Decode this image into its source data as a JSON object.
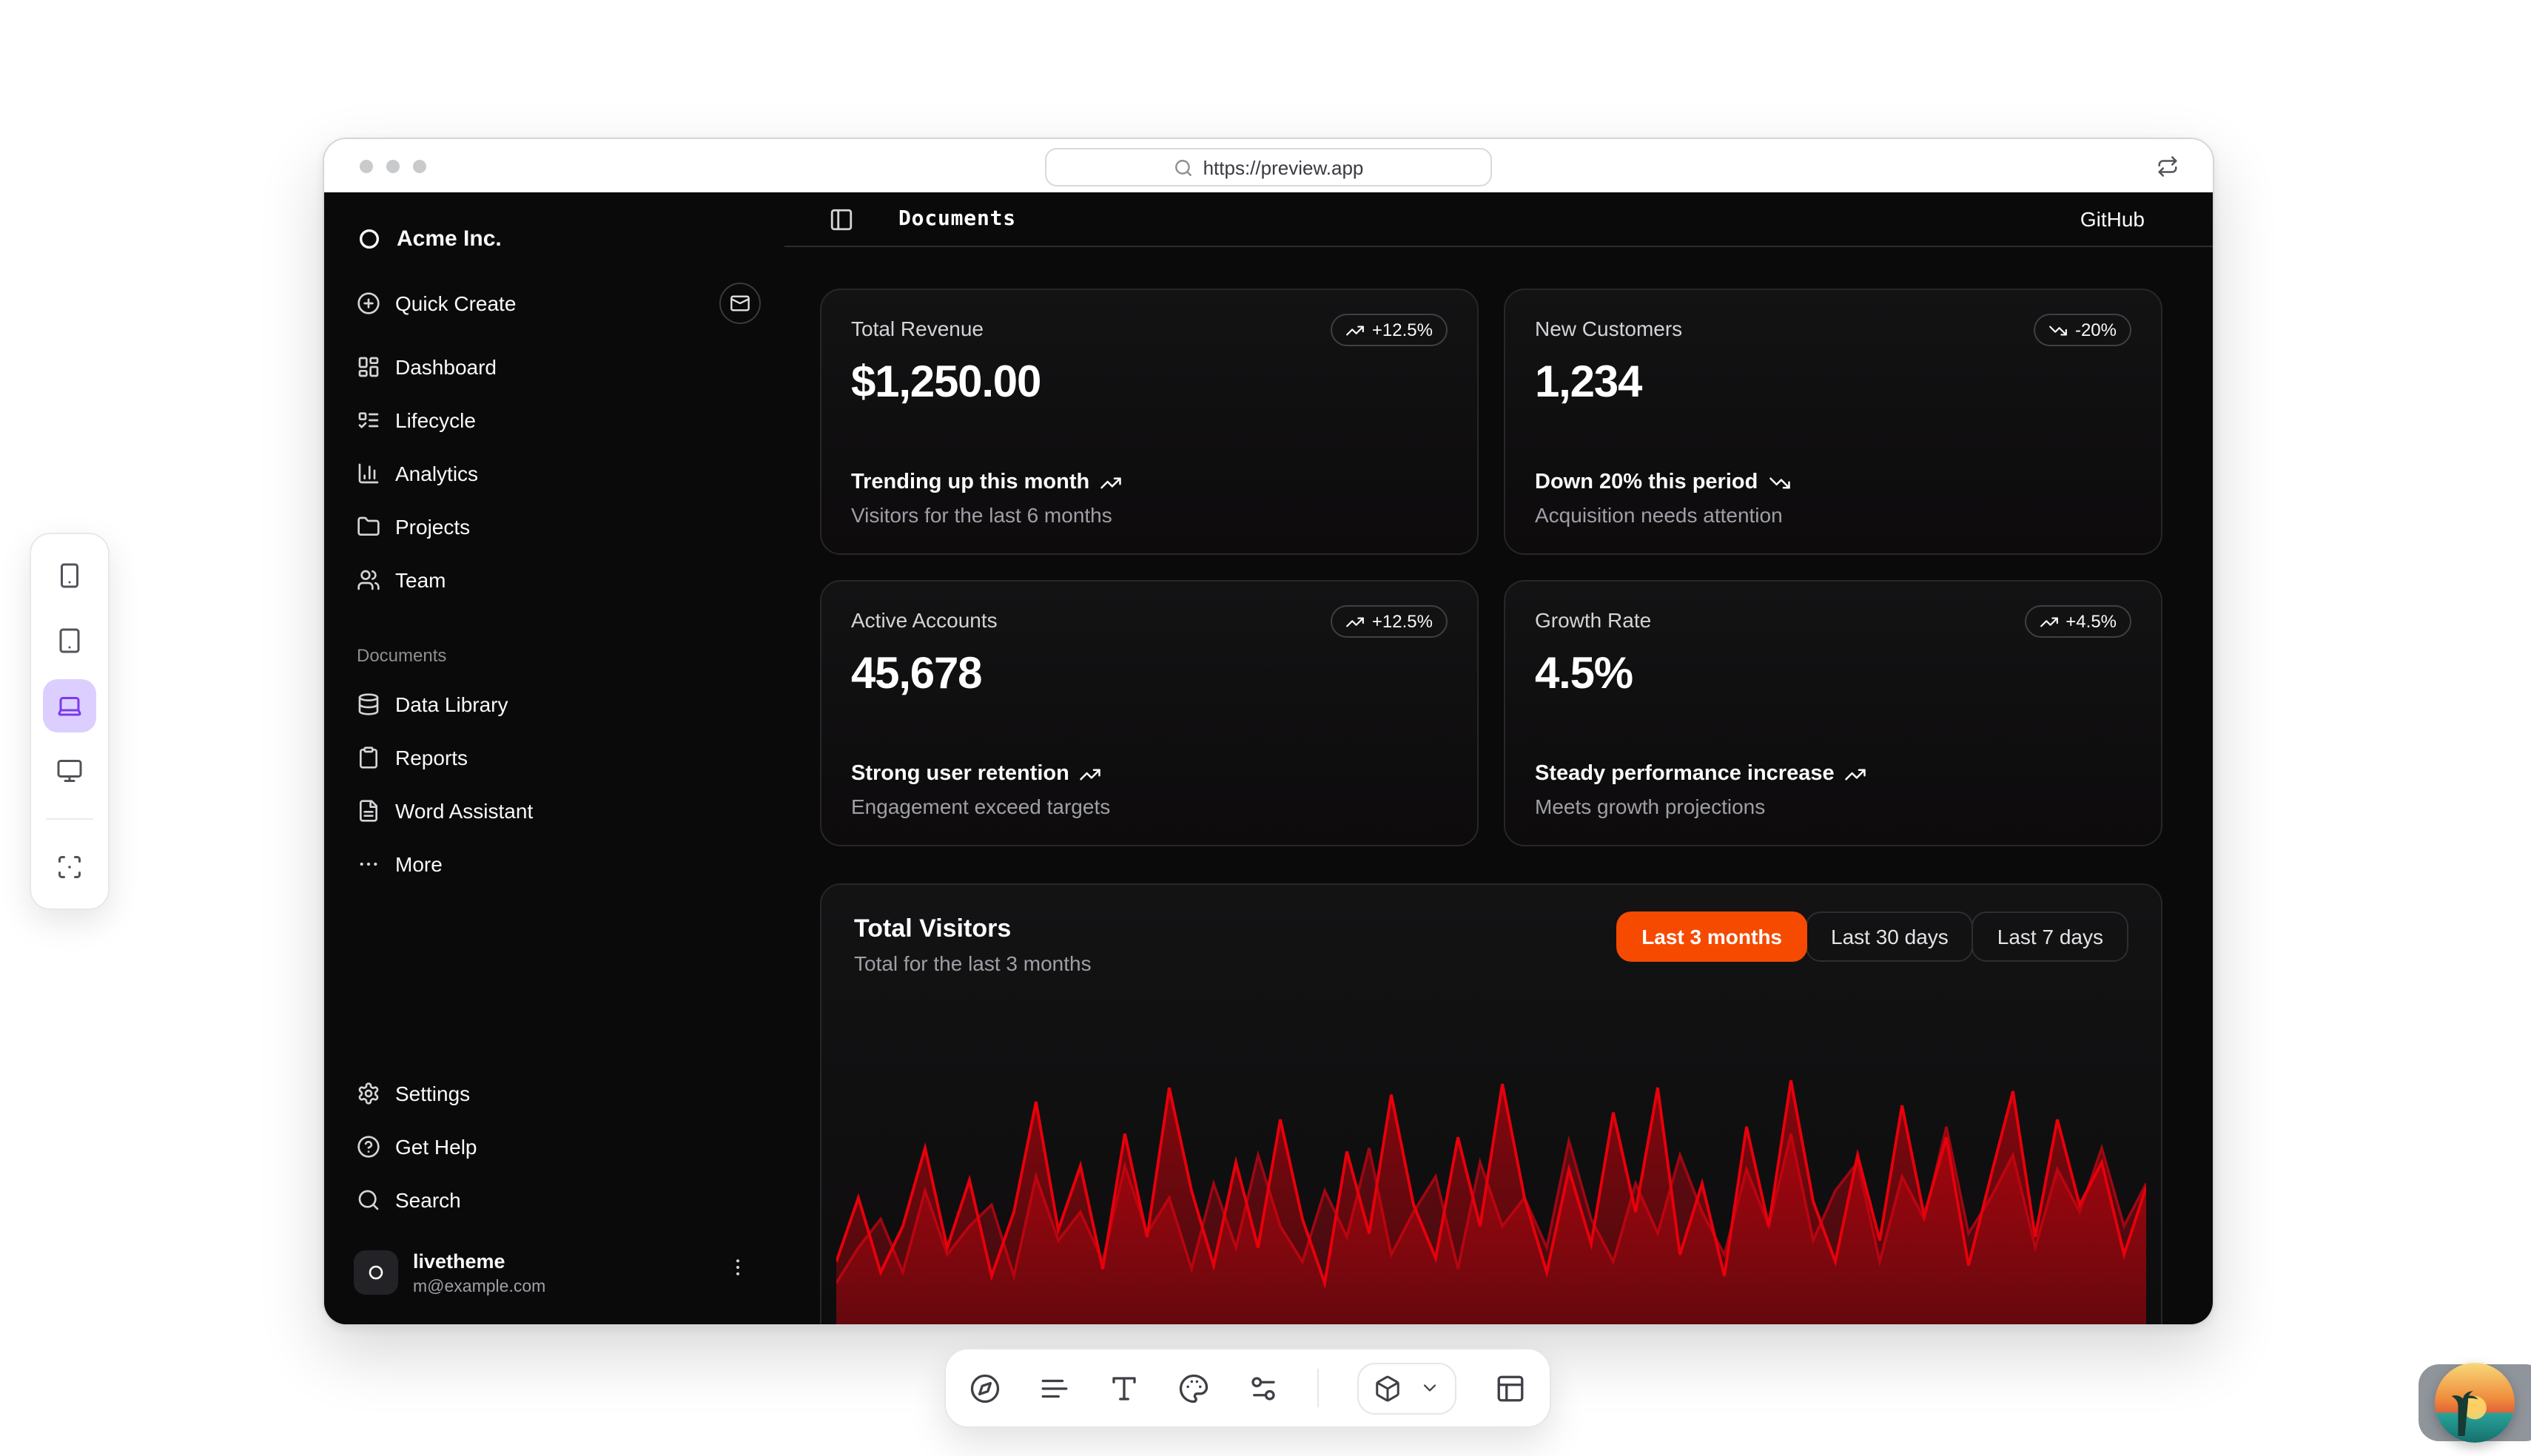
{
  "browser": {
    "url": "https://preview.app"
  },
  "header": {
    "title": "Documents",
    "github": "GitHub"
  },
  "sidebar": {
    "org": "Acme Inc.",
    "quick_create": "Quick Create",
    "nav": [
      {
        "label": "Dashboard",
        "icon": "layout-dashboard"
      },
      {
        "label": "Lifecycle",
        "icon": "list-todo"
      },
      {
        "label": "Analytics",
        "icon": "chart-column"
      },
      {
        "label": "Projects",
        "icon": "folder"
      },
      {
        "label": "Team",
        "icon": "users"
      }
    ],
    "section_label": "Documents",
    "documents": [
      {
        "label": "Data Library",
        "icon": "database"
      },
      {
        "label": "Reports",
        "icon": "clipboard"
      },
      {
        "label": "Word Assistant",
        "icon": "file-text"
      },
      {
        "label": "More",
        "icon": "ellipsis"
      }
    ],
    "footer": [
      {
        "label": "Settings",
        "icon": "gear"
      },
      {
        "label": "Get Help",
        "icon": "help-circle"
      },
      {
        "label": "Search",
        "icon": "search"
      }
    ],
    "user": {
      "name": "livetheme",
      "email": "m@example.com"
    }
  },
  "stats": [
    {
      "title": "Total Revenue",
      "badge": "+12.5%",
      "trend": "up",
      "value": "$1,250.00",
      "line1": "Trending up this month",
      "line2": "Visitors for the last 6 months"
    },
    {
      "title": "New Customers",
      "badge": "-20%",
      "trend": "down",
      "value": "1,234",
      "line1": "Down 20% this period",
      "line2": "Acquisition needs attention"
    },
    {
      "title": "Active Accounts",
      "badge": "+12.5%",
      "trend": "up",
      "value": "45,678",
      "line1": "Strong user retention",
      "line2": "Engagement exceed targets"
    },
    {
      "title": "Growth Rate",
      "badge": "+4.5%",
      "trend": "up",
      "value": "4.5%",
      "line1": "Steady performance increase",
      "line2": "Meets growth projections"
    }
  ],
  "visitors": {
    "ranges": [
      "Last 3 months",
      "Last 30 days",
      "Last 7 days"
    ],
    "active_range": "Last 3 months"
  },
  "chart_data": {
    "type": "area",
    "title": "Total Visitors",
    "subtitle": "Total for the last 3 months",
    "grid": "off",
    "legend": "none",
    "x_axis_labels_visible": false,
    "ylim": [
      0,
      100
    ],
    "series": [
      {
        "name": "primary",
        "color": "#e7000b",
        "values": [
          48,
          66,
          45,
          58,
          80,
          52,
          71,
          44,
          62,
          93,
          57,
          75,
          46,
          84,
          55,
          97,
          68,
          47,
          76,
          52,
          88,
          60,
          42,
          79,
          56,
          95,
          64,
          49,
          83,
          58,
          98,
          66,
          45,
          74,
          53,
          90,
          62,
          97,
          50,
          70,
          44,
          86,
          58,
          99,
          65,
          48,
          78,
          54,
          92,
          61,
          83,
          47,
          72,
          96,
          55,
          88,
          64,
          76,
          50,
          69
        ]
      },
      {
        "name": "secondary",
        "color": "#9f0712",
        "values": [
          42,
          52,
          60,
          45,
          68,
          50,
          58,
          64,
          44,
          72,
          54,
          62,
          48,
          75,
          56,
          66,
          46,
          70,
          52,
          78,
          58,
          48,
          68,
          55,
          80,
          50,
          62,
          72,
          46,
          76,
          58,
          66,
          52,
          82,
          60,
          48,
          70,
          56,
          78,
          62,
          50,
          74,
          58,
          84,
          54,
          68,
          76,
          48,
          72,
          60,
          86,
          56,
          66,
          78,
          52,
          74,
          62,
          80,
          58,
          70
        ]
      }
    ]
  },
  "device_toolbar": {
    "devices": [
      "smartphone",
      "tablet",
      "laptop",
      "monitor"
    ],
    "active": "laptop"
  },
  "colors": {
    "accent": "#f54a00",
    "chart_red": "#e7000b",
    "device_active": "#7c3aed",
    "device_active_bg": "#dccfff"
  }
}
